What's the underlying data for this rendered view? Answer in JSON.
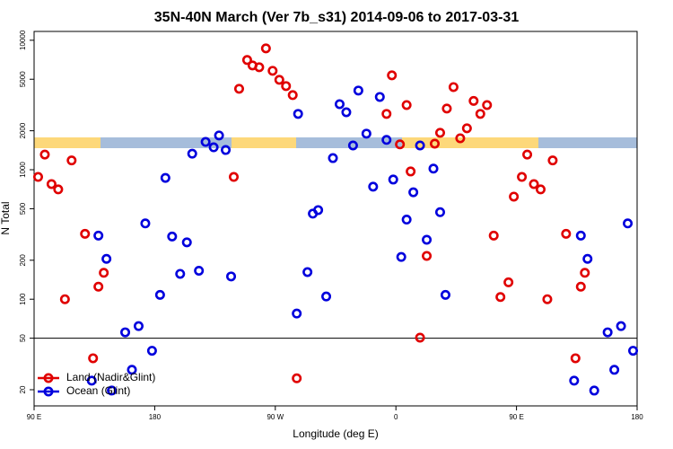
{
  "chart_data": {
    "type": "scatter",
    "title": "35N-40N March (Ver 7b_s31)   2014-09-06 to 2017-03-31",
    "x_label": "Longitude (deg E)",
    "y_label": "N Total",
    "log_y": true,
    "xlim": [
      90,
      540
    ],
    "xticks": [
      {
        "value": 90,
        "label": "90 E"
      },
      180,
      {
        "value": 270,
        "label": "90 W"
      },
      {
        "value": 360,
        "label": "0"
      },
      {
        "value": 450,
        "label": "90 E"
      },
      {
        "value": 540,
        "label": "180"
      }
    ],
    "ylim": [
      15,
      11700
    ],
    "yticks": [
      20,
      50,
      100,
      200,
      500,
      1000,
      2000,
      5000,
      10000
    ],
    "reference_line": 50,
    "legend": "bottom-left",
    "series": [
      {
        "name": "Land (Nadir&Glint)",
        "color": "#e00000",
        "x": [
          93,
          98,
          103,
          108,
          113,
          118,
          128,
          134,
          138,
          142,
          239,
          243,
          249,
          253,
          258,
          263,
          268,
          273,
          278,
          283,
          286,
          353,
          357,
          363,
          368,
          371,
          378,
          383,
          389,
          393,
          398,
          403,
          408,
          413,
          418,
          423,
          428,
          433,
          438,
          444,
          448,
          454,
          458,
          463,
          468,
          473,
          477,
          487,
          494,
          498,
          501
        ],
        "values": [
          880,
          1310,
          775,
          705,
          100,
          1180,
          320,
          35,
          125,
          160,
          880,
          4220,
          7040,
          6390,
          6190,
          8660,
          5810,
          4950,
          4430,
          3770,
          24.5,
          2700,
          5360,
          1570,
          3160,
          970,
          50.5,
          216,
          1590,
          1930,
          2970,
          4350,
          1750,
          2090,
          3400,
          2700,
          3160,
          310,
          104,
          135,
          620,
          880,
          1310,
          775,
          705,
          100,
          1180,
          320,
          35,
          125,
          160
        ]
      },
      {
        "name": "Ocean (Glint)",
        "color": "#0000dd",
        "x": [
          133,
          138,
          144,
          148,
          158,
          163,
          168,
          173,
          178,
          184,
          188,
          193,
          199,
          204,
          208,
          213,
          218,
          224,
          228,
          233,
          237,
          286,
          287,
          294,
          298,
          302,
          308,
          313,
          318,
          323,
          328,
          332,
          338,
          343,
          348,
          353,
          358,
          364,
          368,
          373,
          378,
          383,
          388,
          393,
          397,
          493,
          498,
          503,
          508,
          518,
          523,
          528,
          533,
          537
        ],
        "values": [
          23.5,
          310,
          205,
          19.7,
          55.5,
          28.5,
          62,
          385,
          40,
          108,
          865,
          305,
          157,
          275,
          1330,
          166,
          1640,
          1490,
          1840,
          1420,
          150,
          77.5,
          2700,
          162,
          458,
          488,
          105,
          1230,
          3210,
          2780,
          1540,
          4090,
          1900,
          740,
          3650,
          1700,
          840,
          212,
          412,
          670,
          1540,
          288,
          1020,
          470,
          108,
          23.5,
          310,
          205,
          19.7,
          55.5,
          28.5,
          62,
          385,
          40
        ]
      }
    ]
  }
}
